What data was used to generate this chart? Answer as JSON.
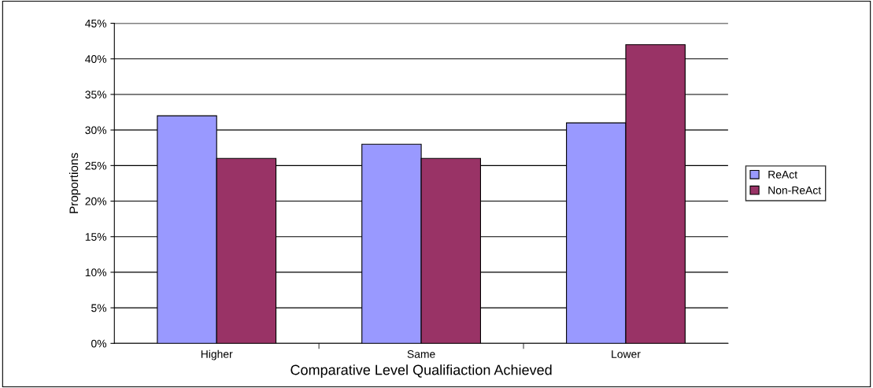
{
  "chart_data": {
    "type": "bar",
    "xlabel": "Comparative Level Qualifiaction Achieved",
    "ylabel": "Proportions",
    "categories": [
      "Higher",
      "Same",
      "Lower"
    ],
    "series": [
      {
        "name": "ReAct",
        "color": "#9999ff",
        "values": [
          32,
          28,
          31
        ]
      },
      {
        "name": "Non-ReAct",
        "color": "#993366",
        "values": [
          26,
          26,
          42
        ]
      }
    ],
    "ylim": [
      0,
      45
    ],
    "yticks": [
      {
        "value": 0,
        "label": "0%"
      },
      {
        "value": 5,
        "label": "5%"
      },
      {
        "value": 10,
        "label": "10%"
      },
      {
        "value": 15,
        "label": "15%"
      },
      {
        "value": 20,
        "label": "20%"
      },
      {
        "value": 25,
        "label": "25%"
      },
      {
        "value": 30,
        "label": "30%"
      },
      {
        "value": 35,
        "label": "35%"
      },
      {
        "value": 40,
        "label": "40%"
      },
      {
        "value": 45,
        "label": "45%"
      }
    ],
    "grid": "y",
    "legend": "right"
  }
}
